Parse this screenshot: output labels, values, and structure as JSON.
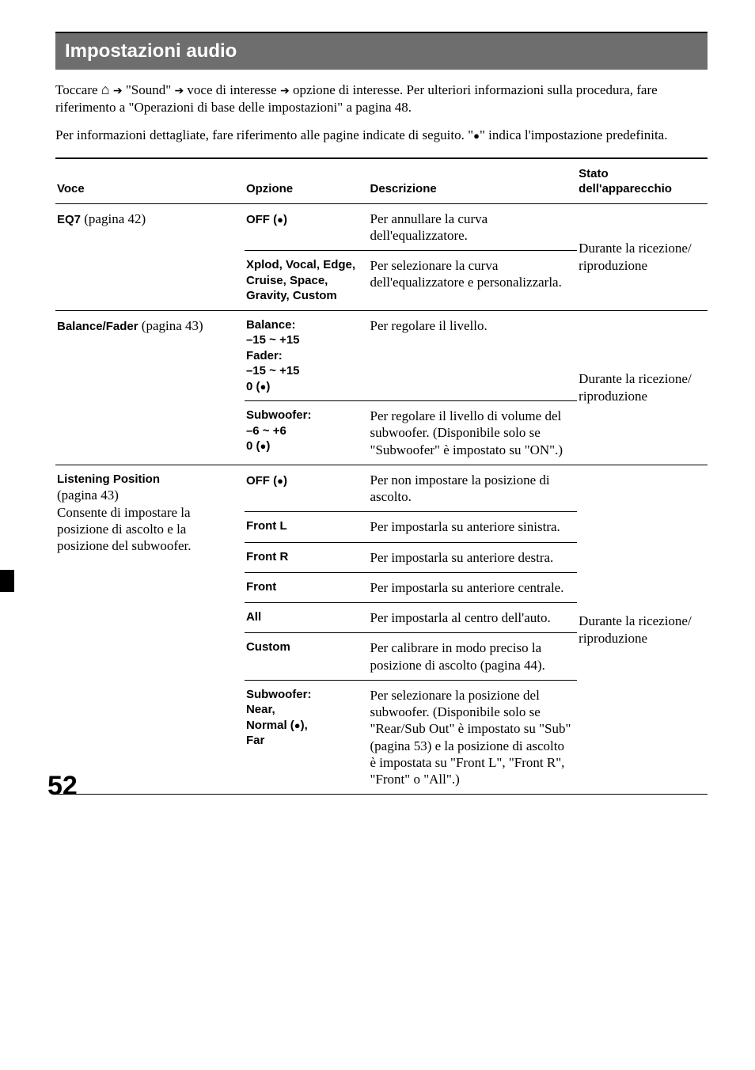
{
  "page_number": "52",
  "section_title": "Impostazioni audio",
  "intro_parts": {
    "p1a": "Toccare ",
    "p1b": " \"Sound\" ",
    "p1c": " voce di interesse ",
    "p1d": " opzione di interesse. Per ulteriori informazioni sulla procedura, fare riferimento a \"Operazioni di base delle impostazioni\" a pagina 48."
  },
  "intro2_parts": {
    "a": "Per informazioni dettagliate, fare riferimento alle pagine indicate di seguito. \"",
    "b": "\" indica l'impostazione predefinita."
  },
  "headers": {
    "voce": "Voce",
    "opzione": "Opzione",
    "descrizione": "Descrizione",
    "stato": "Stato dell'apparecchio"
  },
  "rows": {
    "eq7": {
      "voce_b": "EQ7",
      "voce_n": " (pagina 42)",
      "off_opt_a": "OFF (",
      "off_opt_b": ")",
      "off_desc": "Per annullare la curva dell'equalizzatore.",
      "presets_opt": "Xplod, Vocal, Edge, Cruise, Space, Gravity, Custom",
      "presets_desc": "Per selezionare la curva dell'equalizzatore e personalizzarla.",
      "state": "Durante la ricezione/ riproduzione"
    },
    "bf": {
      "voce_b": "Balance/Fader",
      "voce_n": " (pagina 43)",
      "bal_opt_l1": "Balance:",
      "bal_opt_l2": "–15 ~ +15",
      "bal_opt_l3": "Fader:",
      "bal_opt_l4": "–15 ~ +15",
      "bal_opt_l5a": "0 (",
      "bal_opt_l5b": ")",
      "bal_desc": "Per regolare il livello.",
      "sub_opt_l1": "Subwoofer:",
      "sub_opt_l2": "–6 ~ +6",
      "sub_opt_l3a": "0 (",
      "sub_opt_l3b": ")",
      "sub_desc": "Per regolare il livello di volume del subwoofer. (Disponibile solo se \"Subwoofer\" è impostato su \"ON\".)",
      "state": "Durante la ricezione/ riproduzione"
    },
    "lp": {
      "voce_b": "Listening Position",
      "voce_n1": "(pagina 43)",
      "voce_n2": "Consente di impostare la posizione di ascolto e la posizione del subwoofer.",
      "off_opt_a": "OFF (",
      "off_opt_b": ")",
      "off_desc": "Per non impostare la posizione di ascolto.",
      "fl_opt": "Front L",
      "fl_desc": "Per impostarla su anteriore sinistra.",
      "fr_opt": "Front R",
      "fr_desc": "Per impostarla su anteriore destra.",
      "f_opt": "Front",
      "f_desc": "Per impostarla su anteriore centrale.",
      "all_opt": "All",
      "all_desc": "Per impostarla al centro dell'auto.",
      "cust_opt": "Custom",
      "cust_desc": "Per calibrare in modo preciso la posizione di ascolto (pagina 44).",
      "sub_opt_l1": "Subwoofer:",
      "sub_opt_l2": "Near,",
      "sub_opt_l3a": "Normal (",
      "sub_opt_l3b": "),",
      "sub_opt_l4": "Far",
      "sub_desc": "Per selezionare la posizione del subwoofer. (Disponibile solo se \"Rear/Sub Out\" è impostato su \"Sub\" (pagina 53) e la posizione di ascolto è impostata su \"Front L\", \"Front R\", \"Front\" o \"All\".)",
      "state": "Durante la ricezione/ riproduzione"
    }
  }
}
